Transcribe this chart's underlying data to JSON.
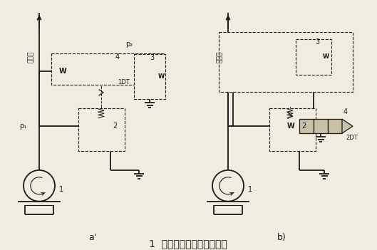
{
  "title": "1  双溢流阀式二级调压回路",
  "bg_color": "#f0ece0",
  "line_color": "#1a1a1a",
  "label_a": "a'",
  "label_b": "b)",
  "p1": "p₁",
  "p2": "p₂",
  "sys_label": "主系统",
  "W": "W",
  "n1DT": "1DT",
  "n2DT": "2DT",
  "lw_main": 1.3,
  "lw_valve": 0.9,
  "lw_dash": 0.8,
  "lw_spring": 0.7,
  "fs_label": 7,
  "fs_small": 6,
  "fs_title": 10
}
